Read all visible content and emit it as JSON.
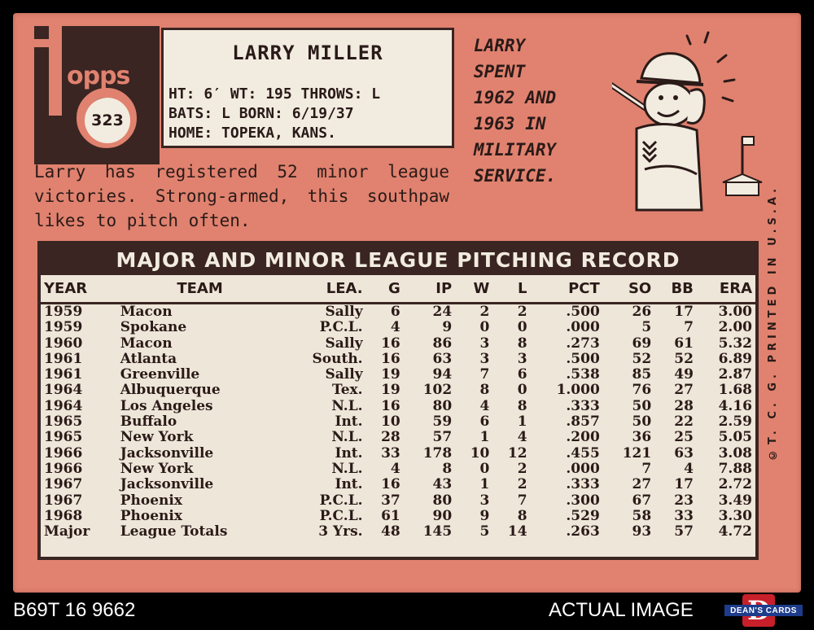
{
  "card": {
    "logo_text": "opps",
    "card_number": "323",
    "player_name": "LARRY MILLER",
    "info": {
      "line1": "HT: 6′    WT: 195    THROWS: L",
      "line2": "BATS: L           BORN: 6/19/37",
      "line3": "HOME: TOPEKA, KANS."
    },
    "bio": "Larry has registered 52 minor league victories. Strong-armed, this southpaw likes to pitch often.",
    "cartoon_caption": [
      "LARRY",
      "SPENT",
      "1962 AND",
      "1963 IN",
      "MILITARY",
      "SERVICE."
    ],
    "side_text": "©T. C. G.  PRINTED  IN  U.S.A.",
    "stats": {
      "title": "MAJOR AND MINOR LEAGUE PITCHING RECORD",
      "headers": [
        "YEAR",
        "TEAM",
        "LEA.",
        "G",
        "IP",
        "W",
        "L",
        "PCT",
        "SO",
        "BB",
        "ERA"
      ],
      "rows": [
        [
          "1959",
          "Macon",
          "Sally",
          "6",
          "24",
          "2",
          "2",
          ".500",
          "26",
          "17",
          "3.00"
        ],
        [
          "1959",
          "Spokane",
          "P.C.L.",
          "4",
          "9",
          "0",
          "0",
          ".000",
          "5",
          "7",
          "2.00"
        ],
        [
          "1960",
          "Macon",
          "Sally",
          "16",
          "86",
          "3",
          "8",
          ".273",
          "69",
          "61",
          "5.32"
        ],
        [
          "1961",
          "Atlanta",
          "South.",
          "16",
          "63",
          "3",
          "3",
          ".500",
          "52",
          "52",
          "6.89"
        ],
        [
          "1961",
          "Greenville",
          "Sally",
          "19",
          "94",
          "7",
          "6",
          ".538",
          "85",
          "49",
          "2.87"
        ],
        [
          "1964",
          "Albuquerque",
          "Tex.",
          "19",
          "102",
          "8",
          "0",
          "1.000",
          "76",
          "27",
          "1.68"
        ],
        [
          "1964",
          "Los Angeles",
          "N.L.",
          "16",
          "80",
          "4",
          "8",
          ".333",
          "50",
          "28",
          "4.16"
        ],
        [
          "1965",
          "Buffalo",
          "Int.",
          "10",
          "59",
          "6",
          "1",
          ".857",
          "50",
          "22",
          "2.59"
        ],
        [
          "1965",
          "New York",
          "N.L.",
          "28",
          "57",
          "1",
          "4",
          ".200",
          "36",
          "25",
          "5.05"
        ],
        [
          "1966",
          "Jacksonville",
          "Int.",
          "33",
          "178",
          "10",
          "12",
          ".455",
          "121",
          "63",
          "3.08"
        ],
        [
          "1966",
          "New York",
          "N.L.",
          "4",
          "8",
          "0",
          "2",
          ".000",
          "7",
          "4",
          "7.88"
        ],
        [
          "1967",
          "Jacksonville",
          "Int.",
          "16",
          "43",
          "1",
          "2",
          ".333",
          "27",
          "17",
          "2.72"
        ],
        [
          "1967",
          "Phoenix",
          "P.C.L.",
          "37",
          "80",
          "3",
          "7",
          ".300",
          "67",
          "23",
          "3.49"
        ],
        [
          "1968",
          "Phoenix",
          "P.C.L.",
          "61",
          "90",
          "9",
          "8",
          ".529",
          "58",
          "33",
          "3.30"
        ]
      ],
      "totals": [
        "Major",
        "League Totals",
        "3 Yrs.",
        "48",
        "145",
        "5",
        "14",
        ".263",
        "93",
        "57",
        "4.72"
      ]
    }
  },
  "footer": {
    "inventory_code": "B69T 16 9662",
    "actual_image": "ACTUAL IMAGE",
    "dealer_logo_text": "DEAN'S CARDS",
    "dealer_logo_letter": "D"
  },
  "colors": {
    "card_background": "#e0826f",
    "dark_brown": "#3a2522",
    "cream": "#f2ece0"
  }
}
